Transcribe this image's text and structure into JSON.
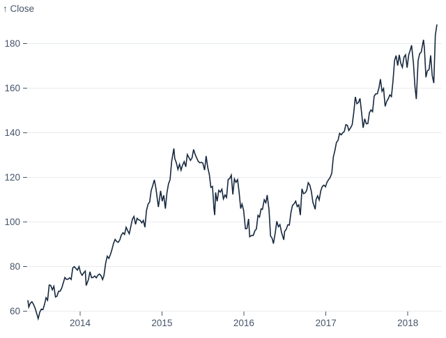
{
  "chart": {
    "y_axis_title": "↑ Close"
  },
  "colors": {
    "background": "#ffffff",
    "axis_text": "#45546a",
    "grid": "#e7eaee",
    "line": "#16283e"
  },
  "chart_data": {
    "type": "line",
    "title": "",
    "series_name": "Close",
    "xlabel": "",
    "ylabel": "Close",
    "grid": "horizontal",
    "legend": "none",
    "ylim": [
      56,
      191
    ],
    "y_ticks": [
      60,
      80,
      100,
      120,
      140,
      160,
      180
    ],
    "x_ticks": [
      {
        "label": "2014",
        "date": "2014-01-01"
      },
      {
        "label": "2015",
        "date": "2015-01-01"
      },
      {
        "label": "2016",
        "date": "2016-01-01"
      },
      {
        "label": "2017",
        "date": "2017-01-01"
      },
      {
        "label": "2018",
        "date": "2018-01-01"
      }
    ],
    "x_domain": [
      "2013-05-13",
      "2018-05-11"
    ],
    "points": [
      [
        "2013-05-13",
        64.96
      ],
      [
        "2013-05-17",
        61.89
      ],
      [
        "2013-05-24",
        63.59
      ],
      [
        "2013-05-31",
        64.25
      ],
      [
        "2013-06-07",
        63.12
      ],
      [
        "2013-06-14",
        61.43
      ],
      [
        "2013-06-21",
        59.07
      ],
      [
        "2013-06-28",
        56.65
      ],
      [
        "2013-07-05",
        59.63
      ],
      [
        "2013-07-12",
        60.93
      ],
      [
        "2013-07-19",
        60.71
      ],
      [
        "2013-07-26",
        63.0
      ],
      [
        "2013-08-02",
        66.08
      ],
      [
        "2013-08-09",
        64.92
      ],
      [
        "2013-08-16",
        71.76
      ],
      [
        "2013-08-23",
        71.57
      ],
      [
        "2013-08-30",
        69.6
      ],
      [
        "2013-09-06",
        71.17
      ],
      [
        "2013-09-13",
        66.41
      ],
      [
        "2013-09-20",
        66.77
      ],
      [
        "2013-09-27",
        68.96
      ],
      [
        "2013-10-04",
        69.0
      ],
      [
        "2013-10-11",
        70.4
      ],
      [
        "2013-10-18",
        72.7
      ],
      [
        "2013-10-25",
        75.14
      ],
      [
        "2013-11-01",
        74.29
      ],
      [
        "2013-11-08",
        74.37
      ],
      [
        "2013-11-15",
        74.99
      ],
      [
        "2013-11-22",
        74.26
      ],
      [
        "2013-11-29",
        79.44
      ],
      [
        "2013-12-06",
        80.0
      ],
      [
        "2013-12-13",
        79.2
      ],
      [
        "2013-12-20",
        78.43
      ],
      [
        "2013-12-27",
        80.01
      ],
      [
        "2014-01-03",
        77.28
      ],
      [
        "2014-01-10",
        76.13
      ],
      [
        "2014-01-17",
        77.24
      ],
      [
        "2014-01-24",
        78.01
      ],
      [
        "2014-01-28",
        71.54
      ],
      [
        "2014-02-07",
        74.24
      ],
      [
        "2014-02-14",
        77.71
      ],
      [
        "2014-02-21",
        75.04
      ],
      [
        "2014-02-28",
        75.18
      ],
      [
        "2014-03-07",
        75.77
      ],
      [
        "2014-03-14",
        74.96
      ],
      [
        "2014-03-21",
        76.12
      ],
      [
        "2014-03-28",
        76.69
      ],
      [
        "2014-04-04",
        75.97
      ],
      [
        "2014-04-11",
        74.23
      ],
      [
        "2014-04-17",
        75.89
      ],
      [
        "2014-04-25",
        81.71
      ],
      [
        "2014-05-02",
        84.65
      ],
      [
        "2014-05-09",
        83.65
      ],
      [
        "2014-05-16",
        85.36
      ],
      [
        "2014-05-23",
        87.73
      ],
      [
        "2014-05-30",
        90.43
      ],
      [
        "2014-06-06",
        92.22
      ],
      [
        "2014-06-13",
        91.28
      ],
      [
        "2014-06-20",
        90.91
      ],
      [
        "2014-06-27",
        91.98
      ],
      [
        "2014-07-03",
        94.03
      ],
      [
        "2014-07-11",
        95.22
      ],
      [
        "2014-07-18",
        94.43
      ],
      [
        "2014-07-25",
        97.67
      ],
      [
        "2014-08-01",
        96.13
      ],
      [
        "2014-08-08",
        94.74
      ],
      [
        "2014-08-15",
        97.98
      ],
      [
        "2014-08-22",
        101.32
      ],
      [
        "2014-08-29",
        102.5
      ],
      [
        "2014-09-05",
        98.97
      ],
      [
        "2014-09-12",
        101.66
      ],
      [
        "2014-09-19",
        100.96
      ],
      [
        "2014-09-26",
        100.75
      ],
      [
        "2014-10-03",
        99.62
      ],
      [
        "2014-10-10",
        100.73
      ],
      [
        "2014-10-17",
        97.67
      ],
      [
        "2014-10-24",
        105.22
      ],
      [
        "2014-10-31",
        108.0
      ],
      [
        "2014-11-07",
        109.01
      ],
      [
        "2014-11-14",
        114.18
      ],
      [
        "2014-11-21",
        116.47
      ],
      [
        "2014-11-28",
        118.93
      ],
      [
        "2014-12-05",
        115.0
      ],
      [
        "2014-12-12",
        109.73
      ],
      [
        "2014-12-16",
        106.75
      ],
      [
        "2014-12-26",
        113.99
      ],
      [
        "2015-01-02",
        109.33
      ],
      [
        "2015-01-09",
        112.01
      ],
      [
        "2015-01-16",
        105.99
      ],
      [
        "2015-01-23",
        112.98
      ],
      [
        "2015-01-30",
        117.16
      ],
      [
        "2015-02-06",
        118.93
      ],
      [
        "2015-02-13",
        127.08
      ],
      [
        "2015-02-23",
        133.0
      ],
      [
        "2015-02-27",
        128.46
      ],
      [
        "2015-03-06",
        126.6
      ],
      [
        "2015-03-13",
        123.59
      ],
      [
        "2015-03-20",
        125.9
      ],
      [
        "2015-03-27",
        123.25
      ],
      [
        "2015-04-02",
        125.32
      ],
      [
        "2015-04-10",
        127.1
      ],
      [
        "2015-04-17",
        124.75
      ],
      [
        "2015-04-24",
        130.28
      ],
      [
        "2015-05-01",
        128.95
      ],
      [
        "2015-05-08",
        127.62
      ],
      [
        "2015-05-15",
        128.77
      ],
      [
        "2015-05-22",
        132.54
      ],
      [
        "2015-05-29",
        130.28
      ],
      [
        "2015-06-05",
        128.65
      ],
      [
        "2015-06-12",
        127.17
      ],
      [
        "2015-06-19",
        126.6
      ],
      [
        "2015-06-26",
        126.75
      ],
      [
        "2015-07-02",
        126.44
      ],
      [
        "2015-07-10",
        123.28
      ],
      [
        "2015-07-17",
        129.62
      ],
      [
        "2015-07-24",
        124.5
      ],
      [
        "2015-07-31",
        121.3
      ],
      [
        "2015-08-07",
        115.52
      ],
      [
        "2015-08-14",
        115.96
      ],
      [
        "2015-08-21",
        105.76
      ],
      [
        "2015-08-24",
        103.12
      ],
      [
        "2015-08-28",
        113.29
      ],
      [
        "2015-09-04",
        109.27
      ],
      [
        "2015-09-11",
        114.21
      ],
      [
        "2015-09-18",
        113.45
      ],
      [
        "2015-09-25",
        114.71
      ],
      [
        "2015-10-02",
        110.38
      ],
      [
        "2015-10-09",
        112.12
      ],
      [
        "2015-10-16",
        111.04
      ],
      [
        "2015-10-23",
        119.08
      ],
      [
        "2015-10-30",
        119.5
      ],
      [
        "2015-11-06",
        121.06
      ],
      [
        "2015-11-13",
        112.34
      ],
      [
        "2015-11-20",
        119.3
      ],
      [
        "2015-11-27",
        117.81
      ],
      [
        "2015-12-04",
        119.03
      ],
      [
        "2015-12-11",
        113.18
      ],
      [
        "2015-12-18",
        106.03
      ],
      [
        "2015-12-24",
        108.03
      ],
      [
        "2015-12-31",
        105.26
      ],
      [
        "2016-01-08",
        96.96
      ],
      [
        "2016-01-15",
        97.13
      ],
      [
        "2016-01-22",
        101.42
      ],
      [
        "2016-01-27",
        93.42
      ],
      [
        "2016-02-05",
        94.02
      ],
      [
        "2016-02-12",
        93.99
      ],
      [
        "2016-02-19",
        96.04
      ],
      [
        "2016-02-26",
        96.91
      ],
      [
        "2016-03-04",
        103.01
      ],
      [
        "2016-03-11",
        102.26
      ],
      [
        "2016-03-18",
        105.92
      ],
      [
        "2016-03-24",
        105.67
      ],
      [
        "2016-04-01",
        109.99
      ],
      [
        "2016-04-08",
        108.66
      ],
      [
        "2016-04-14",
        112.1
      ],
      [
        "2016-04-22",
        105.68
      ],
      [
        "2016-04-29",
        93.74
      ],
      [
        "2016-05-06",
        92.72
      ],
      [
        "2016-05-12",
        90.34
      ],
      [
        "2016-05-20",
        95.22
      ],
      [
        "2016-05-27",
        100.35
      ],
      [
        "2016-06-03",
        97.92
      ],
      [
        "2016-06-10",
        98.83
      ],
      [
        "2016-06-17",
        95.33
      ],
      [
        "2016-06-27",
        92.04
      ],
      [
        "2016-07-01",
        95.89
      ],
      [
        "2016-07-08",
        96.68
      ],
      [
        "2016-07-15",
        98.78
      ],
      [
        "2016-07-22",
        98.66
      ],
      [
        "2016-07-29",
        104.21
      ],
      [
        "2016-08-05",
        107.48
      ],
      [
        "2016-08-12",
        108.18
      ],
      [
        "2016-08-19",
        109.36
      ],
      [
        "2016-08-26",
        106.94
      ],
      [
        "2016-09-02",
        107.73
      ],
      [
        "2016-09-09",
        103.13
      ],
      [
        "2016-09-16",
        114.92
      ],
      [
        "2016-09-23",
        112.71
      ],
      [
        "2016-09-30",
        113.05
      ],
      [
        "2016-10-07",
        114.06
      ],
      [
        "2016-10-14",
        117.63
      ],
      [
        "2016-10-21",
        116.6
      ],
      [
        "2016-10-28",
        113.72
      ],
      [
        "2016-11-04",
        108.84
      ],
      [
        "2016-11-14",
        105.71
      ],
      [
        "2016-11-18",
        110.06
      ],
      [
        "2016-11-25",
        111.79
      ],
      [
        "2016-12-02",
        109.9
      ],
      [
        "2016-12-09",
        113.95
      ],
      [
        "2016-12-16",
        115.97
      ],
      [
        "2016-12-23",
        116.52
      ],
      [
        "2016-12-30",
        115.82
      ],
      [
        "2017-01-06",
        117.91
      ],
      [
        "2017-01-13",
        119.04
      ],
      [
        "2017-01-20",
        120.0
      ],
      [
        "2017-01-27",
        121.95
      ],
      [
        "2017-02-03",
        129.08
      ],
      [
        "2017-02-10",
        132.12
      ],
      [
        "2017-02-17",
        135.72
      ],
      [
        "2017-02-24",
        136.66
      ],
      [
        "2017-03-03",
        139.78
      ],
      [
        "2017-03-10",
        139.14
      ],
      [
        "2017-03-17",
        139.99
      ],
      [
        "2017-03-24",
        140.64
      ],
      [
        "2017-03-31",
        143.66
      ],
      [
        "2017-04-07",
        143.34
      ],
      [
        "2017-04-13",
        141.05
      ],
      [
        "2017-04-21",
        142.27
      ],
      [
        "2017-04-28",
        143.65
      ],
      [
        "2017-05-05",
        148.96
      ],
      [
        "2017-05-12",
        156.1
      ],
      [
        "2017-05-19",
        153.06
      ],
      [
        "2017-05-26",
        153.61
      ],
      [
        "2017-06-02",
        155.45
      ],
      [
        "2017-06-09",
        148.98
      ],
      [
        "2017-06-16",
        142.27
      ],
      [
        "2017-06-23",
        146.28
      ],
      [
        "2017-06-30",
        144.02
      ],
      [
        "2017-07-07",
        144.18
      ],
      [
        "2017-07-14",
        149.04
      ],
      [
        "2017-07-21",
        150.27
      ],
      [
        "2017-07-28",
        149.5
      ],
      [
        "2017-08-04",
        156.39
      ],
      [
        "2017-08-11",
        157.48
      ],
      [
        "2017-08-18",
        157.5
      ],
      [
        "2017-08-25",
        159.86
      ],
      [
        "2017-09-01",
        164.05
      ],
      [
        "2017-09-08",
        158.63
      ],
      [
        "2017-09-15",
        159.88
      ],
      [
        "2017-09-22",
        151.89
      ],
      [
        "2017-09-29",
        154.12
      ],
      [
        "2017-10-06",
        155.3
      ],
      [
        "2017-10-13",
        156.99
      ],
      [
        "2017-10-20",
        156.25
      ],
      [
        "2017-10-27",
        163.05
      ],
      [
        "2017-11-03",
        172.5
      ],
      [
        "2017-11-10",
        174.67
      ],
      [
        "2017-11-17",
        170.15
      ],
      [
        "2017-11-24",
        174.97
      ],
      [
        "2017-12-01",
        171.05
      ],
      [
        "2017-12-08",
        169.37
      ],
      [
        "2017-12-15",
        173.97
      ],
      [
        "2017-12-22",
        175.01
      ],
      [
        "2017-12-29",
        169.23
      ],
      [
        "2018-01-05",
        175.0
      ],
      [
        "2018-01-12",
        177.09
      ],
      [
        "2018-01-18",
        179.26
      ],
      [
        "2018-01-26",
        171.51
      ],
      [
        "2018-02-02",
        160.5
      ],
      [
        "2018-02-08",
        155.15
      ],
      [
        "2018-02-16",
        172.43
      ],
      [
        "2018-02-23",
        175.5
      ],
      [
        "2018-03-02",
        176.21
      ],
      [
        "2018-03-12",
        181.72
      ],
      [
        "2018-03-16",
        178.02
      ],
      [
        "2018-03-23",
        164.94
      ],
      [
        "2018-03-29",
        167.78
      ],
      [
        "2018-04-06",
        168.38
      ],
      [
        "2018-04-13",
        174.73
      ],
      [
        "2018-04-20",
        165.72
      ],
      [
        "2018-04-27",
        162.32
      ],
      [
        "2018-05-04",
        183.83
      ],
      [
        "2018-05-11",
        188.59
      ]
    ]
  }
}
